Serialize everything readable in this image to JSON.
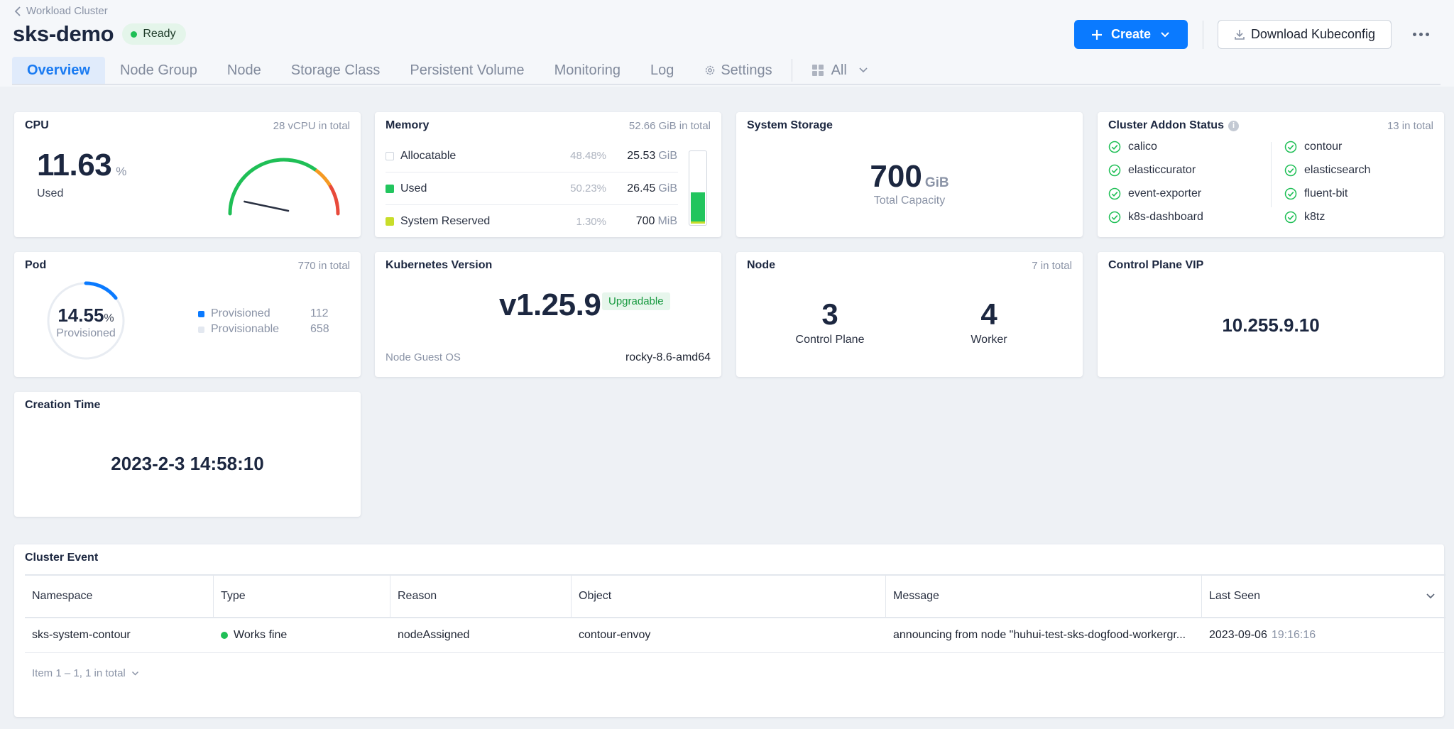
{
  "header": {
    "back_label": "Workload Cluster",
    "title": "sks-demo",
    "status": "Ready",
    "create_label": "Create",
    "download_label": "Download Kubeconfig"
  },
  "tabs": [
    {
      "label": "Overview",
      "active": true
    },
    {
      "label": "Node Group"
    },
    {
      "label": "Node"
    },
    {
      "label": "Storage Class"
    },
    {
      "label": "Persistent Volume"
    },
    {
      "label": "Monitoring"
    },
    {
      "label": "Log"
    },
    {
      "label": "Settings"
    }
  ],
  "tab_filter": {
    "label": "All"
  },
  "cpu": {
    "title": "CPU",
    "total": "28 vCPU in total",
    "value": "11.63",
    "unit": "%",
    "label": "Used",
    "used_fraction": 0.1163
  },
  "memory": {
    "title": "Memory",
    "total": "52.66 GiB in total",
    "rows": [
      {
        "name": "Allocatable",
        "pct": "48.48%",
        "value": "25.53",
        "unit": "GiB",
        "color": "#ffffff"
      },
      {
        "name": "Used",
        "pct": "50.23%",
        "value": "26.45",
        "unit": "GiB",
        "color": "#22c55e"
      },
      {
        "name": "System Reserved",
        "pct": "1.30%",
        "value": "700",
        "unit": "MiB",
        "color": "#c8dd2a"
      }
    ],
    "used_fraction": 0.5023
  },
  "storage": {
    "title": "System Storage",
    "value": "700",
    "unit": "GiB",
    "label": "Total Capacity"
  },
  "addons": {
    "title": "Cluster Addon Status",
    "total": "13 in total",
    "items": [
      "calico",
      "contour",
      "elasticcurator",
      "elasticsearch",
      "event-exporter",
      "fluent-bit",
      "k8s-dashboard",
      "k8tz"
    ],
    "ok_color": "#1fbf56"
  },
  "pod": {
    "title": "Pod",
    "total": "770 in total",
    "value": "14.55",
    "unit": "%",
    "label": "Provisioned",
    "fraction": 0.1455,
    "legend": [
      {
        "name": "Provisioned",
        "count": "112",
        "color": "#0a7aff"
      },
      {
        "name": "Provisionable",
        "count": "658",
        "color": "#e3e8f0"
      }
    ]
  },
  "kubernetes": {
    "title": "Kubernetes Version",
    "version": "v1.25.9",
    "badge": "Upgradable",
    "os_label": "Node Guest OS",
    "os_value": "rocky-8.6-amd64"
  },
  "node": {
    "title": "Node",
    "total": "7 in total",
    "control_plane_count": "3",
    "control_plane_label": "Control Plane",
    "worker_count": "4",
    "worker_label": "Worker"
  },
  "vip": {
    "title": "Control Plane VIP",
    "value": "10.255.9.10"
  },
  "creation": {
    "title": "Creation Time",
    "value": "2023-2-3 14:58:10"
  },
  "events": {
    "title": "Cluster Event",
    "columns": [
      "Namespace",
      "Type",
      "Reason",
      "Object",
      "Message",
      "Last Seen"
    ],
    "rows": [
      {
        "namespace": "sks-system-contour",
        "type": "Works fine",
        "reason": "nodeAssigned",
        "object": "contour-envoy",
        "message": "announcing from node \"huhui-test-sks-dogfood-workergr...",
        "last_seen_date": "2023-09-06",
        "last_seen_time": "19:16:16"
      }
    ],
    "footer": "Item 1 – 1, 1 in total"
  },
  "colors": {
    "accent": "#0a7aff",
    "ok": "#1fbf56",
    "gauge_green": "#1fbf56",
    "gauge_orange": "#f59a23",
    "gauge_red": "#e84a3b"
  }
}
